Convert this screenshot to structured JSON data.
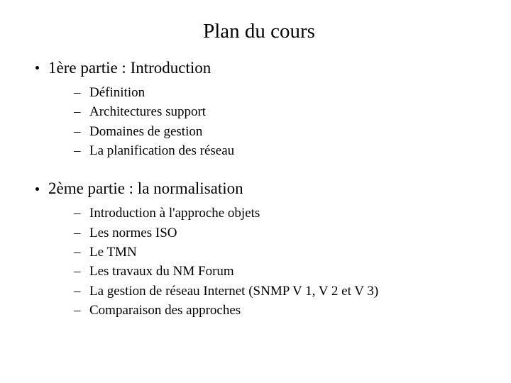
{
  "title": "Plan du cours",
  "sections": [
    {
      "heading": "1ère partie : Introduction",
      "items": [
        "Définition",
        "Architectures support",
        "Domaines de gestion",
        "La planification des réseau"
      ]
    },
    {
      "heading": "2ème partie : la normalisation",
      "items": [
        "Introduction à l'approche objets",
        " Les normes ISO",
        "Le TMN",
        "Les travaux du NM Forum",
        "La gestion de réseau Internet (SNMP V 1, V 2 et V 3)",
        "Comparaison des approches"
      ]
    }
  ],
  "style": {
    "background_color": "#ffffff",
    "text_color": "#000000",
    "font_family": "Times New Roman",
    "title_fontsize": 29,
    "level1_fontsize": 23,
    "level2_fontsize": 19,
    "bullet1": "disc",
    "bullet2": "–"
  }
}
